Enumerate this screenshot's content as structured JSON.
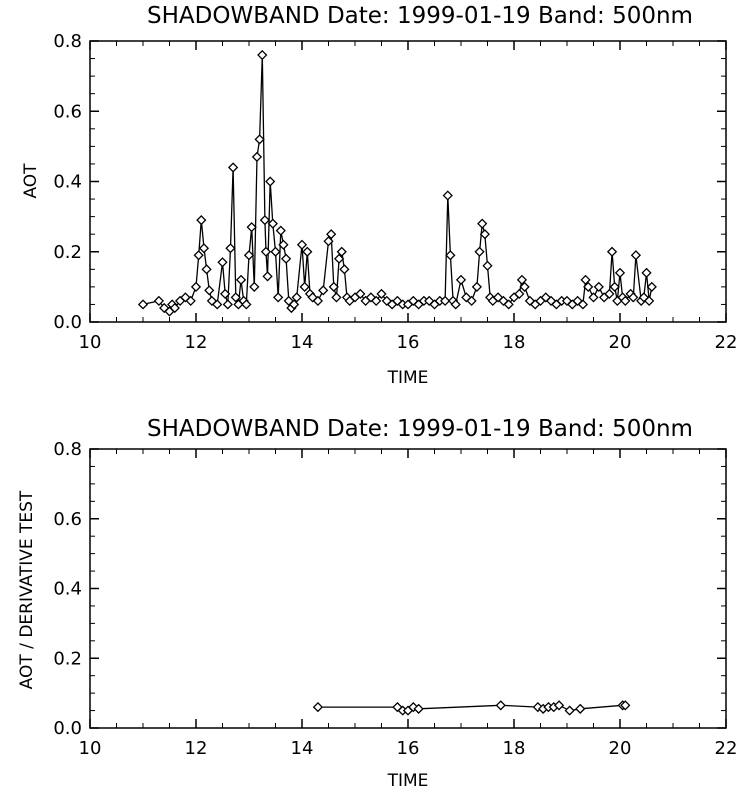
{
  "chart_data": [
    {
      "type": "line",
      "title": "SHADOWBAND Date: 1999-01-19 Band: 500nm",
      "xlabel": "TIME",
      "ylabel": "AOT",
      "xlim": [
        10,
        22
      ],
      "ylim": [
        0.0,
        0.8
      ],
      "x_ticks": [
        "10",
        "12",
        "14",
        "16",
        "18",
        "20",
        "22"
      ],
      "y_ticks": [
        "0.0",
        "0.2",
        "0.4",
        "0.6",
        "0.8"
      ],
      "marker": "diamond",
      "line_color": "#000000",
      "grid": false,
      "series": [
        {
          "x": [
            11.0,
            11.3,
            11.4,
            11.5,
            11.55,
            11.6,
            11.7,
            11.8,
            11.9,
            12.0,
            12.05,
            12.1,
            12.15,
            12.2,
            12.25,
            12.3,
            12.4,
            12.5,
            12.55,
            12.6,
            12.65,
            12.7,
            12.75,
            12.8,
            12.85,
            12.9,
            12.95,
            13.0,
            13.05,
            13.1,
            13.15,
            13.2,
            13.25,
            13.3,
            13.32,
            13.35,
            13.4,
            13.45,
            13.5,
            13.55,
            13.6,
            13.65,
            13.7,
            13.75,
            13.8,
            13.85,
            13.9,
            14.0,
            14.05,
            14.1,
            14.15,
            14.2,
            14.3,
            14.4,
            14.5,
            14.55,
            14.6,
            14.65,
            14.7,
            14.75,
            14.8,
            14.85,
            14.9,
            15.0,
            15.1,
            15.2,
            15.3,
            15.4,
            15.5,
            15.6,
            15.7,
            15.8,
            15.9,
            16.0,
            16.1,
            16.2,
            16.3,
            16.4,
            16.5,
            16.6,
            16.7,
            16.75,
            16.8,
            16.85,
            16.9,
            17.0,
            17.1,
            17.2,
            17.3,
            17.35,
            17.4,
            17.45,
            17.5,
            17.55,
            17.6,
            17.7,
            17.8,
            17.9,
            18.0,
            18.1,
            18.15,
            18.2,
            18.3,
            18.4,
            18.5,
            18.6,
            18.7,
            18.8,
            18.9,
            19.0,
            19.1,
            19.2,
            19.3,
            19.35,
            19.4,
            19.5,
            19.6,
            19.7,
            19.8,
            19.85,
            19.9,
            19.95,
            20.0,
            20.05,
            20.1,
            20.2,
            20.25,
            20.3,
            20.4,
            20.45,
            20.5,
            20.55,
            20.6
          ],
          "y": [
            0.05,
            0.06,
            0.04,
            0.03,
            0.05,
            0.04,
            0.06,
            0.07,
            0.06,
            0.1,
            0.19,
            0.29,
            0.21,
            0.15,
            0.09,
            0.06,
            0.05,
            0.17,
            0.08,
            0.05,
            0.21,
            0.44,
            0.07,
            0.05,
            0.12,
            0.06,
            0.05,
            0.19,
            0.27,
            0.1,
            0.47,
            0.52,
            0.76,
            0.29,
            0.2,
            0.13,
            0.4,
            0.28,
            0.2,
            0.07,
            0.26,
            0.22,
            0.18,
            0.06,
            0.04,
            0.05,
            0.07,
            0.22,
            0.1,
            0.2,
            0.08,
            0.07,
            0.06,
            0.09,
            0.23,
            0.25,
            0.1,
            0.07,
            0.18,
            0.2,
            0.15,
            0.07,
            0.06,
            0.07,
            0.08,
            0.06,
            0.07,
            0.06,
            0.08,
            0.06,
            0.05,
            0.06,
            0.05,
            0.05,
            0.06,
            0.05,
            0.06,
            0.06,
            0.05,
            0.06,
            0.06,
            0.36,
            0.19,
            0.06,
            0.05,
            0.12,
            0.07,
            0.06,
            0.1,
            0.2,
            0.28,
            0.25,
            0.16,
            0.07,
            0.06,
            0.07,
            0.06,
            0.05,
            0.07,
            0.08,
            0.12,
            0.1,
            0.06,
            0.05,
            0.06,
            0.07,
            0.06,
            0.05,
            0.06,
            0.06,
            0.05,
            0.06,
            0.05,
            0.12,
            0.1,
            0.07,
            0.1,
            0.07,
            0.08,
            0.2,
            0.1,
            0.06,
            0.14,
            0.07,
            0.06,
            0.08,
            0.07,
            0.19,
            0.06,
            0.07,
            0.14,
            0.06,
            0.1
          ]
        }
      ]
    },
    {
      "type": "line",
      "title": "SHADOWBAND Date: 1999-01-19 Band: 500nm",
      "xlabel": "TIME",
      "ylabel": "AOT / DERIVATIVE TEST",
      "xlim": [
        10,
        22
      ],
      "ylim": [
        0.0,
        0.8
      ],
      "x_ticks": [
        "10",
        "12",
        "14",
        "16",
        "18",
        "20",
        "22"
      ],
      "y_ticks": [
        "0.0",
        "0.2",
        "0.4",
        "0.6",
        "0.8"
      ],
      "marker": "diamond",
      "line_color": "#000000",
      "grid": false,
      "series": [
        {
          "x": [
            14.3,
            15.8,
            15.9,
            16.0,
            16.1,
            16.2,
            17.75,
            18.45,
            18.55,
            18.65,
            18.75,
            18.85,
            19.05,
            19.25,
            20.05,
            20.1
          ],
          "y": [
            0.06,
            0.06,
            0.05,
            0.05,
            0.06,
            0.055,
            0.065,
            0.06,
            0.055,
            0.06,
            0.06,
            0.065,
            0.05,
            0.055,
            0.065,
            0.065
          ]
        }
      ]
    }
  ]
}
